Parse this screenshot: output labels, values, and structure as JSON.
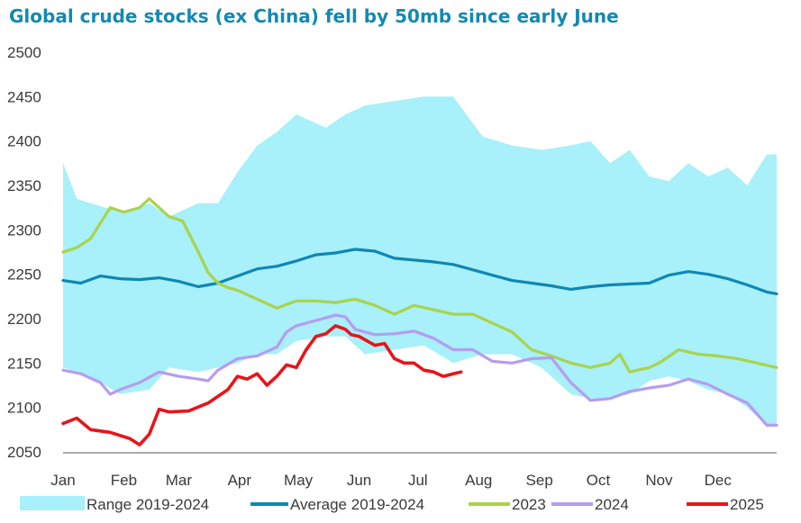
{
  "chart_data": {
    "type": "line",
    "title": "Global crude stocks (ex China) fell by 50mb since early June",
    "xlabel": "",
    "ylabel": "",
    "ylim": [
      2050,
      2500
    ],
    "yticks": [
      2050,
      2100,
      2150,
      2200,
      2250,
      2300,
      2350,
      2400,
      2450,
      2500
    ],
    "xlim": [
      1,
      365
    ],
    "months": [
      "Jan",
      "Feb",
      "Mar",
      "Apr",
      "May",
      "Jun",
      "Jul",
      "Aug",
      "Sep",
      "Oct",
      "Nov",
      "Dec"
    ],
    "month_start_days": [
      1,
      32,
      60,
      91,
      121,
      152,
      182,
      213,
      244,
      274,
      305,
      335
    ],
    "grid": false,
    "legend_position": "bottom",
    "colors": {
      "range": "#a8f0fa",
      "average": "#0f87b2",
      "2023": "#a9d34b",
      "2024": "#b69cf0",
      "2025": "#e8141b",
      "title": "#1389b1"
    },
    "range": {
      "name": "Range 2019-2024",
      "x": [
        1,
        8,
        15,
        30,
        45,
        55,
        70,
        80,
        90,
        100,
        110,
        120,
        135,
        145,
        155,
        170,
        185,
        200,
        215,
        230,
        245,
        260,
        270,
        280,
        290,
        300,
        310,
        320,
        330,
        340,
        350,
        360,
        365
      ],
      "high": [
        2375,
        2335,
        2330,
        2320,
        2330,
        2315,
        2330,
        2330,
        2365,
        2395,
        2410,
        2430,
        2415,
        2430,
        2440,
        2445,
        2450,
        2450,
        2405,
        2395,
        2390,
        2395,
        2400,
        2375,
        2390,
        2360,
        2355,
        2375,
        2360,
        2370,
        2350,
        2385,
        2385
      ],
      "low": [
        2145,
        2140,
        2135,
        2115,
        2120,
        2145,
        2140,
        2145,
        2150,
        2160,
        2160,
        2175,
        2180,
        2180,
        2160,
        2165,
        2170,
        2150,
        2160,
        2160,
        2145,
        2115,
        2110,
        2110,
        2115,
        2130,
        2135,
        2130,
        2120,
        2115,
        2100,
        2080,
        2080
      ]
    },
    "series": [
      {
        "name": "Average 2019-2024",
        "x": [
          1,
          10,
          20,
          30,
          40,
          50,
          60,
          70,
          80,
          90,
          100,
          110,
          120,
          130,
          140,
          150,
          160,
          170,
          180,
          190,
          200,
          210,
          220,
          230,
          240,
          250,
          260,
          270,
          280,
          290,
          300,
          310,
          320,
          330,
          340,
          350,
          360,
          365
        ],
        "values": [
          2243,
          2240,
          2248,
          2245,
          2244,
          2246,
          2242,
          2236,
          2240,
          2248,
          2256,
          2259,
          2265,
          2272,
          2274,
          2278,
          2276,
          2268,
          2266,
          2264,
          2261,
          2255,
          2249,
          2243,
          2240,
          2237,
          2233,
          2236,
          2238,
          2239,
          2240,
          2249,
          2253,
          2250,
          2245,
          2238,
          2230,
          2228
        ]
      },
      {
        "name": "2023",
        "x": [
          1,
          8,
          15,
          25,
          32,
          40,
          45,
          55,
          62,
          70,
          75,
          80,
          85,
          90,
          100,
          110,
          120,
          130,
          140,
          150,
          160,
          170,
          180,
          190,
          200,
          210,
          220,
          230,
          240,
          250,
          260,
          270,
          280,
          285,
          290,
          300,
          305,
          315,
          325,
          335,
          345,
          355,
          365
        ],
        "values": [
          2275,
          2280,
          2290,
          2325,
          2320,
          2325,
          2335,
          2315,
          2310,
          2275,
          2252,
          2240,
          2235,
          2232,
          2222,
          2212,
          2220,
          2220,
          2218,
          2222,
          2215,
          2205,
          2215,
          2210,
          2205,
          2205,
          2195,
          2185,
          2165,
          2158,
          2150,
          2145,
          2150,
          2160,
          2140,
          2145,
          2150,
          2165,
          2160,
          2158,
          2155,
          2150,
          2145
        ]
      },
      {
        "name": "2024",
        "x": [
          1,
          10,
          20,
          25,
          30,
          40,
          50,
          60,
          70,
          75,
          80,
          90,
          100,
          110,
          115,
          120,
          130,
          140,
          145,
          150,
          160,
          170,
          180,
          190,
          200,
          210,
          220,
          230,
          240,
          250,
          260,
          270,
          280,
          290,
          300,
          310,
          320,
          330,
          340,
          350,
          360,
          365
        ],
        "values": [
          2142,
          2138,
          2128,
          2115,
          2120,
          2128,
          2140,
          2135,
          2132,
          2130,
          2142,
          2155,
          2158,
          2168,
          2185,
          2192,
          2198,
          2204,
          2202,
          2188,
          2182,
          2183,
          2186,
          2178,
          2165,
          2165,
          2152,
          2150,
          2155,
          2156,
          2128,
          2108,
          2110,
          2118,
          2122,
          2125,
          2132,
          2126,
          2115,
          2105,
          2080,
          2080
        ]
      },
      {
        "name": "2025",
        "x": [
          1,
          8,
          15,
          25,
          35,
          40,
          45,
          50,
          55,
          65,
          75,
          85,
          90,
          95,
          100,
          105,
          110,
          115,
          120,
          125,
          130,
          135,
          140,
          145,
          148,
          152,
          160,
          165,
          170,
          175,
          180,
          185,
          190,
          195,
          200,
          204
        ],
        "values": [
          2082,
          2088,
          2075,
          2072,
          2065,
          2058,
          2070,
          2098,
          2095,
          2096,
          2105,
          2120,
          2135,
          2132,
          2138,
          2125,
          2135,
          2148,
          2145,
          2165,
          2180,
          2183,
          2192,
          2188,
          2182,
          2180,
          2170,
          2172,
          2155,
          2150,
          2150,
          2142,
          2140,
          2135,
          2138,
          2140
        ]
      }
    ]
  }
}
